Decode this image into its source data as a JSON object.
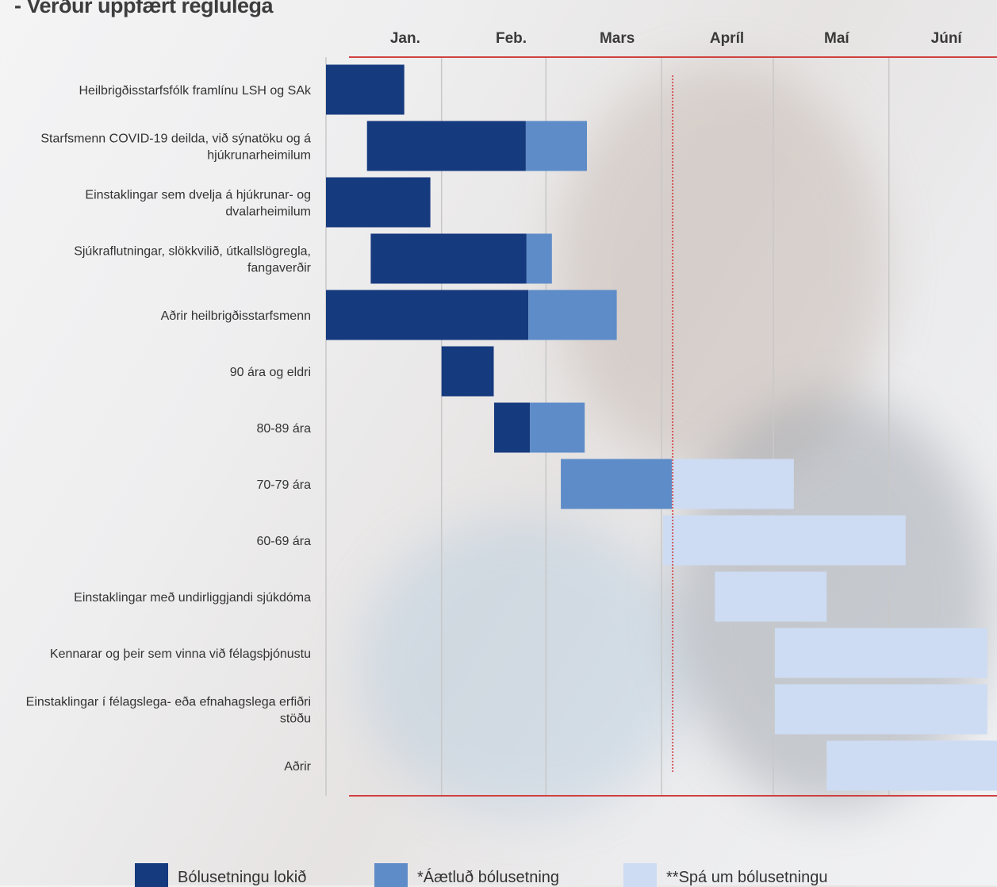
{
  "title": "- Verður uppfært reglulega",
  "chart_data": {
    "type": "gantt",
    "title": "- Verður uppfært reglulega",
    "x_unit": "day of year (0 = 1 Jan)",
    "xlim": [
      0,
      181
    ],
    "months": [
      {
        "label": "Jan.",
        "start": 0,
        "end": 31
      },
      {
        "label": "Feb.",
        "start": 31,
        "end": 59
      },
      {
        "label": "Mars",
        "start": 59,
        "end": 90
      },
      {
        "label": "Apríl",
        "start": 90,
        "end": 120
      },
      {
        "label": "Maí",
        "start": 120,
        "end": 151
      },
      {
        "label": "Júní",
        "start": 151,
        "end": 181
      }
    ],
    "today_marker": 93,
    "colors": {
      "done": "#163a7e",
      "planned": "#5e8cc8",
      "forecast": "#cddcf2",
      "axis": "#d04040",
      "grid": "#c8c8c8"
    },
    "legend": [
      {
        "key": "done",
        "label": "Bólusetningu lokið"
      },
      {
        "key": "planned",
        "label": "*Áætluð bólusetning"
      },
      {
        "key": "forecast",
        "label": "**Spá um bólusetningu"
      }
    ],
    "rows": [
      {
        "label": [
          "Heilbrigðisstarfsfólk framlínu LSH og SAk"
        ],
        "segments": [
          {
            "type": "done",
            "start": 0,
            "end": 21
          }
        ]
      },
      {
        "label": [
          "Starfsmenn COVID-19 deilda, við sýnatöku og á",
          "hjúkrunarheimilum"
        ],
        "segments": [
          {
            "type": "done",
            "start": 11,
            "end": 53.6
          },
          {
            "type": "planned",
            "start": 53.6,
            "end": 70
          }
        ]
      },
      {
        "label": [
          "Einstaklingar sem dvelja á hjúkrunar- og",
          "dvalarheimilum"
        ],
        "segments": [
          {
            "type": "done",
            "start": 0,
            "end": 28
          }
        ]
      },
      {
        "label": [
          "Sjúkraflutningar, slökkvilið, útkallslögregla,",
          "fangaverðir"
        ],
        "segments": [
          {
            "type": "done",
            "start": 12,
            "end": 53.8
          },
          {
            "type": "planned",
            "start": 53.8,
            "end": 60.6
          }
        ]
      },
      {
        "label": [
          "Aðrir heilbrigðisstarfsmenn"
        ],
        "segments": [
          {
            "type": "done",
            "start": 0,
            "end": 54.3
          },
          {
            "type": "planned",
            "start": 54.3,
            "end": 78
          }
        ]
      },
      {
        "label": [
          "90 ára og eldri"
        ],
        "segments": [
          {
            "type": "done",
            "start": 31,
            "end": 45
          }
        ]
      },
      {
        "label": [
          "80-89 ára"
        ],
        "segments": [
          {
            "type": "done",
            "start": 45.1,
            "end": 54.7
          },
          {
            "type": "planned",
            "start": 54.7,
            "end": 69.4
          }
        ]
      },
      {
        "label": [
          "70-79 ára"
        ],
        "segments": [
          {
            "type": "planned",
            "start": 63,
            "end": 92.8
          },
          {
            "type": "forecast",
            "start": 92.8,
            "end": 125.5
          }
        ]
      },
      {
        "label": [
          "60-69 ára"
        ],
        "segments": [
          {
            "type": "forecast",
            "start": 90.4,
            "end": 155.5
          }
        ]
      },
      {
        "label": [
          "Einstaklingar með undirliggjandi sjúkdóma"
        ],
        "segments": [
          {
            "type": "forecast",
            "start": 104.3,
            "end": 134.3
          }
        ]
      },
      {
        "label": [
          "Kennarar og þeir sem vinna við félagsþjónustu"
        ],
        "segments": [
          {
            "type": "forecast",
            "start": 120.4,
            "end": 177.4
          }
        ]
      },
      {
        "label": [
          "Einstaklingar í félagslega- eða efnahagslega erfiðri",
          "stöðu"
        ],
        "segments": [
          {
            "type": "forecast",
            "start": 120.4,
            "end": 177.4
          }
        ]
      },
      {
        "label": [
          "Aðrir"
        ],
        "segments": [
          {
            "type": "forecast",
            "start": 134.3,
            "end": 181
          }
        ]
      }
    ]
  }
}
